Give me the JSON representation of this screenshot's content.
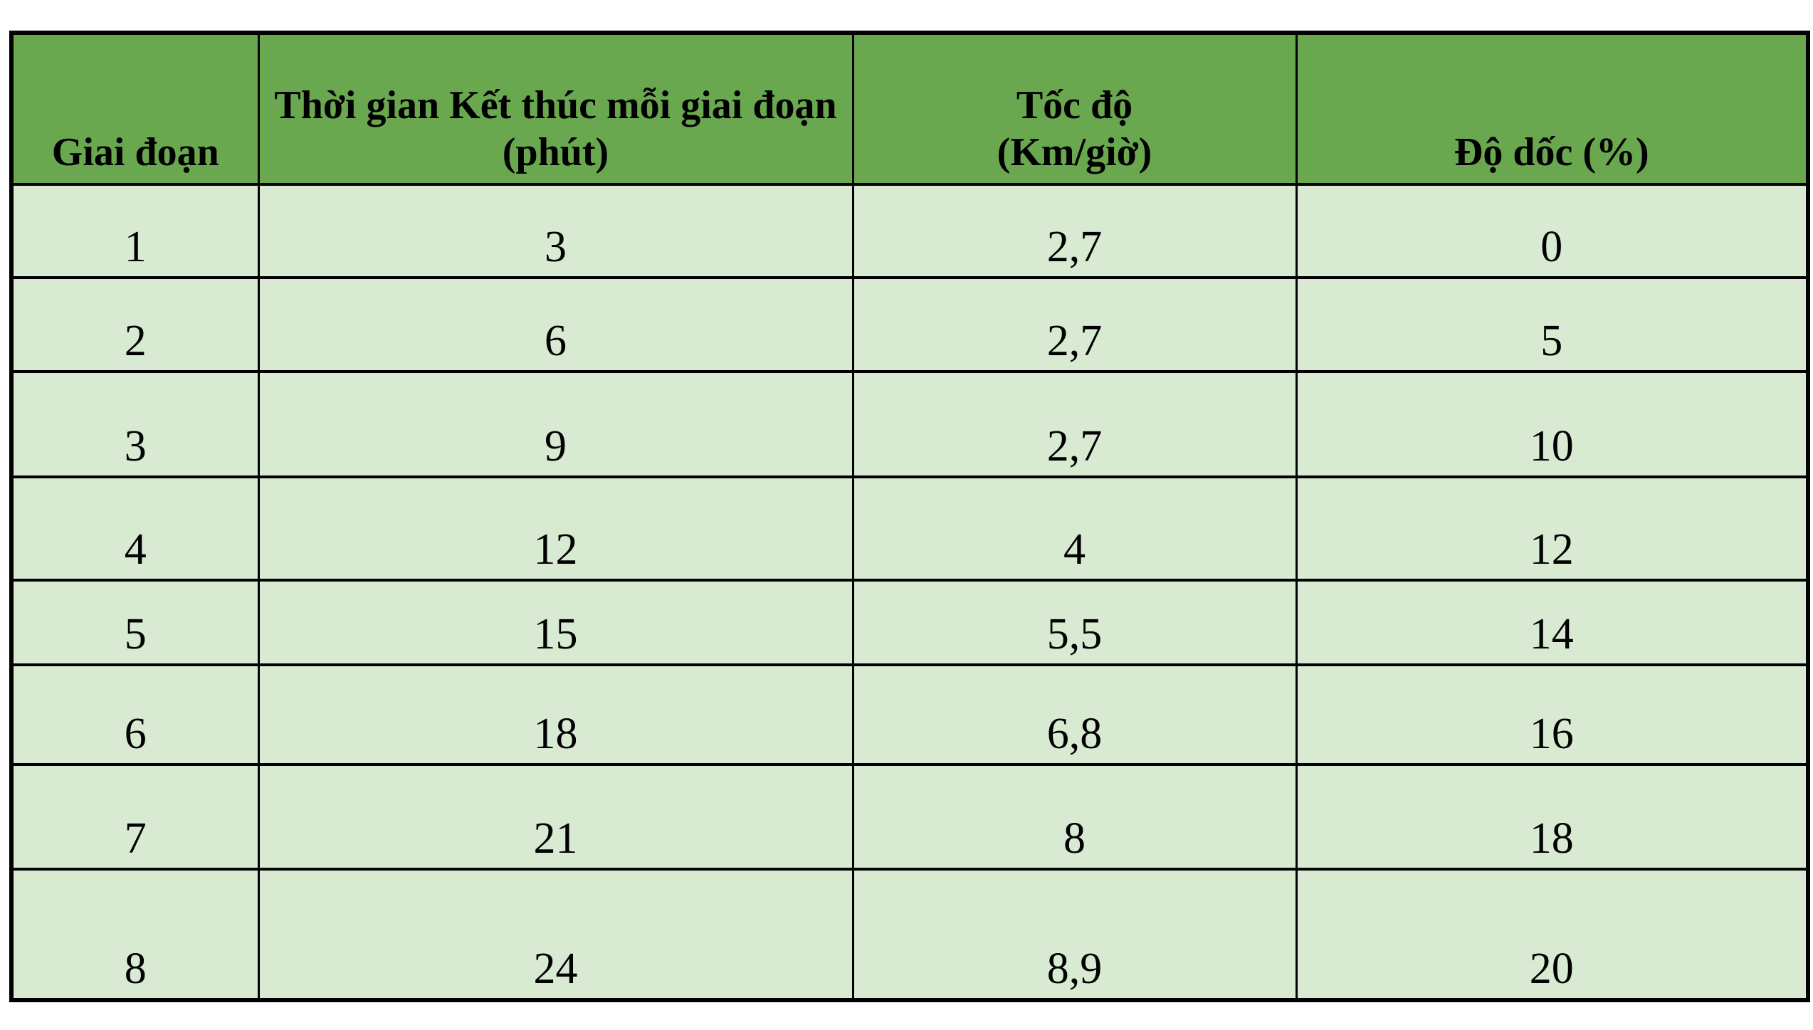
{
  "colors": {
    "header_bg": "#6aa84f",
    "row_bg": "#d9ead3",
    "border": "#000000",
    "text": "#000000",
    "page_bg": "#ffffff"
  },
  "table": {
    "columns": [
      {
        "label_line1": "Giai đoạn",
        "label_line2": ""
      },
      {
        "label_line1": "Thời gian Kết thúc mỗi giai đoạn",
        "label_line2": "(phút)"
      },
      {
        "label_line1": "Tốc độ",
        "label_line2": "(Km/giờ)"
      },
      {
        "label_line1": "Độ dốc (%)",
        "label_line2": ""
      }
    ],
    "rows": [
      [
        "1",
        "3",
        "2,7",
        "0"
      ],
      [
        "2",
        "6",
        "2,7",
        "5"
      ],
      [
        "3",
        "9",
        "2,7",
        "10"
      ],
      [
        "4",
        "12",
        "4",
        "12"
      ],
      [
        "5",
        "15",
        "5,5",
        "14"
      ],
      [
        "6",
        "18",
        "6,8",
        "16"
      ],
      [
        "7",
        "21",
        "8",
        "18"
      ],
      [
        "8",
        "24",
        "8,9",
        "20"
      ]
    ]
  },
  "chart_data": {
    "type": "table",
    "title": "",
    "columns": [
      "Giai đoạn",
      "Thời gian Kết thúc mỗi giai đoạn (phút)",
      "Tốc độ (Km/giờ)",
      "Độ dốc (%)"
    ],
    "rows": [
      [
        1,
        3,
        2.7,
        0
      ],
      [
        2,
        6,
        2.7,
        5
      ],
      [
        3,
        9,
        2.7,
        10
      ],
      [
        4,
        12,
        4,
        12
      ],
      [
        5,
        15,
        5.5,
        14
      ],
      [
        6,
        18,
        6.8,
        16
      ],
      [
        7,
        21,
        8,
        18
      ],
      [
        8,
        24,
        8.9,
        20
      ]
    ]
  }
}
